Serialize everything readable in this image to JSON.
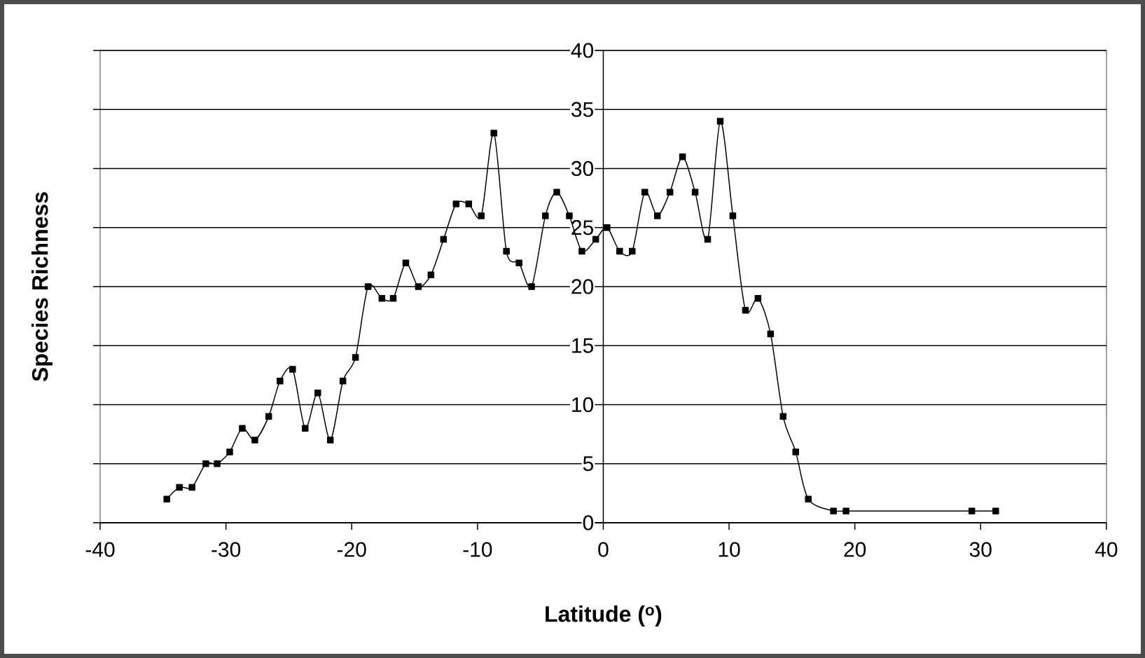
{
  "chart_data": {
    "type": "line",
    "xlabel": "Latitude ($^{o}$)",
    "ylabel": "Species Richness",
    "x": [
      -34.7,
      -33.7,
      -32.7,
      -31.6,
      -30.7,
      -29.7,
      -28.7,
      -27.7,
      -26.6,
      -25.7,
      -24.7,
      -23.7,
      -22.7,
      -21.7,
      -20.7,
      -19.7,
      -18.7,
      -17.6,
      -16.7,
      -15.7,
      -14.7,
      -13.7,
      -12.7,
      -11.7,
      -10.7,
      -9.7,
      -8.7,
      -7.7,
      -6.7,
      -5.7,
      -4.6,
      -3.7,
      -2.7,
      -1.7,
      -0.6,
      0.3,
      1.3,
      2.3,
      3.3,
      4.3,
      5.3,
      6.3,
      7.3,
      8.3,
      9.3,
      10.3,
      11.3,
      12.3,
      13.3,
      14.3,
      15.3,
      16.3,
      18.3,
      19.3,
      29.3,
      31.2
    ],
    "values": [
      2,
      3,
      3,
      5,
      5,
      6,
      8,
      7,
      9,
      12,
      13,
      8,
      11,
      7,
      12,
      14,
      20,
      19,
      19,
      22,
      20,
      21,
      24,
      27,
      27,
      26,
      33,
      23,
      22,
      20,
      26,
      28,
      26,
      23,
      24,
      25,
      23,
      23,
      28,
      26,
      28,
      31,
      28,
      24,
      34,
      26,
      18,
      19,
      16,
      9,
      6,
      2,
      1,
      1,
      1,
      1
    ],
    "color": "#000000",
    "marker": "square",
    "line_style": "solid",
    "xlim": [
      -40,
      40
    ],
    "ylim": [
      0,
      40
    ],
    "xticks": [
      -40,
      -30,
      -20,
      -10,
      0,
      10,
      20,
      30,
      40
    ],
    "yticks": [
      0,
      5,
      10,
      15,
      20,
      25,
      30,
      35,
      40
    ],
    "grid": "y"
  }
}
